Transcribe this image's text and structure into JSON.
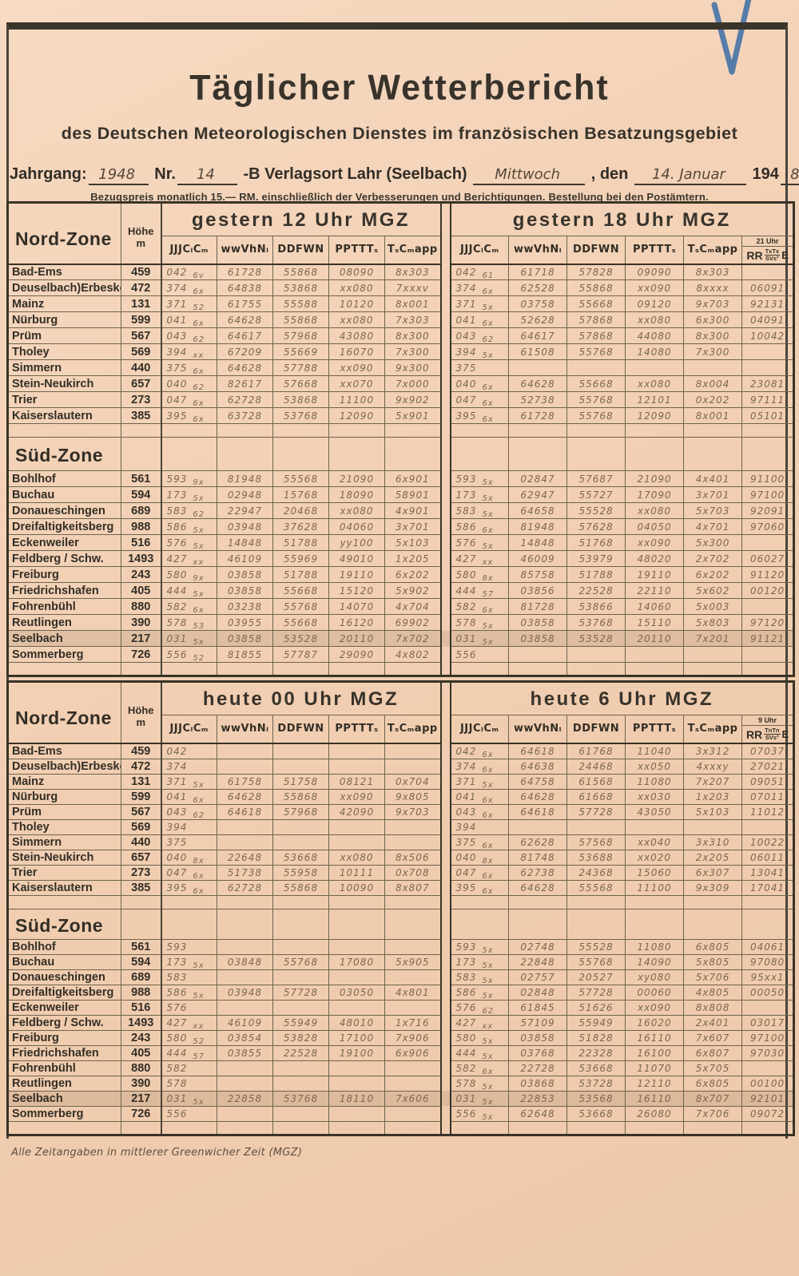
{
  "page": {
    "title": "Täglicher Wetterbericht",
    "subtitle": "des Deutschen Meteorologischen Dienstes im französischen Besatzungsgebiet",
    "issue": {
      "jahrgang_label": "Jahrgang:",
      "jahrgang_value": "1948",
      "nr_label": "Nr.",
      "nr_value": "14",
      "publisher": "-B Verlagsort Lahr (Seelbach)",
      "weekday": "Mittwoch",
      "den_label": ", den",
      "date_value": "14. Januar",
      "year_print": "194",
      "year_hand": "8"
    },
    "note": "Bezugspreis monatlich 15.— RM. einschließlich der Verbesserungen und Berichtigungen. Bestellung bei den Postämtern.",
    "footnote": "Alle Zeitangaben in mittlerer Greenwicher Zeit (MGZ)",
    "pen_mark": "blue-checkmark",
    "pen_mark_color": "#3a6ca6",
    "paper_color": "#f1ceb2",
    "ink_color": "#332e26",
    "hand_ink_color": "#7c6850"
  },
  "columns": {
    "zone_nord": "Nord-Zone",
    "zone_sued": "Süd-Zone",
    "hoehe": "Höhe",
    "hoehe_unit": "m",
    "data_heads": [
      "JJJCₗCₘ",
      "wwVhNₗ",
      "DDFWN",
      "PPTTTₛ",
      "TₛCₘapp"
    ],
    "rr_label": "RR",
    "rr_bottom": "SVs°",
    "rr_e": "E"
  },
  "sections": [
    {
      "left_title": "gestern 12 Uhr MGZ",
      "right_title": "gestern 18 Uhr MGZ",
      "rr_time": "21 Uhr",
      "rr_top": "TxTx",
      "nord": [
        {
          "name": "Bad-Ems",
          "h": "459",
          "l": [
            "042 6v",
            "61728",
            "55868",
            "08090",
            "8x303"
          ],
          "r": [
            "042 61",
            "61718",
            "57828",
            "09090",
            "8x303",
            ""
          ]
        },
        {
          "name": "Deuselbach)Erbeskopf",
          "h": "472",
          "l": [
            "374 6x",
            "64838",
            "53868",
            "xx080",
            "7xxxv"
          ],
          "r": [
            "374 6x",
            "62528",
            "55868",
            "xx090",
            "8xxxx",
            "06091"
          ]
        },
        {
          "name": "Mainz",
          "h": "131",
          "l": [
            "371 52",
            "61755",
            "55588",
            "10120",
            "8x001"
          ],
          "r": [
            "371 5x",
            "03758",
            "55668",
            "09120",
            "9x703",
            "92131"
          ]
        },
        {
          "name": "Nürburg",
          "h": "599",
          "l": [
            "041 6x",
            "64628",
            "55868",
            "xx080",
            "7x303"
          ],
          "r": [
            "041 6x",
            "52628",
            "57868",
            "xx080",
            "6x300",
            "04091"
          ]
        },
        {
          "name": "Prüm",
          "h": "567",
          "l": [
            "043 62",
            "64617",
            "57968",
            "43080",
            "8x300"
          ],
          "r": [
            "043 62",
            "64617",
            "57868",
            "44080",
            "8x300",
            "10042"
          ]
        },
        {
          "name": "Tholey",
          "h": "569",
          "l": [
            "394 xx",
            "67209",
            "55669",
            "16070",
            "7x300"
          ],
          "r": [
            "394 5x",
            "61508",
            "55768",
            "14080",
            "7x300",
            ""
          ]
        },
        {
          "name": "Simmern",
          "h": "440",
          "l": [
            "375 6x",
            "64628",
            "57788",
            "xx090",
            "9x300"
          ],
          "r": [
            "375",
            "",
            "",
            "",
            "",
            ""
          ]
        },
        {
          "name": "Stein-Neukirch",
          "h": "657",
          "l": [
            "040 62",
            "82617",
            "57668",
            "xx070",
            "7x000"
          ],
          "r": [
            "040 6x",
            "64628",
            "55668",
            "xx080",
            "8x004",
            "23081"
          ]
        },
        {
          "name": "Trier",
          "h": "273",
          "l": [
            "047 6x",
            "62728",
            "53868",
            "11100",
            "9x902"
          ],
          "r": [
            "047 6x",
            "52738",
            "55768",
            "12101",
            "0x202",
            "97111"
          ]
        },
        {
          "name": "Kaiserslautern",
          "h": "385",
          "l": [
            "395 6x",
            "63728",
            "53768",
            "12090",
            "5x901"
          ],
          "r": [
            "395 6x",
            "61728",
            "55768",
            "12090",
            "8x001",
            "05101"
          ]
        }
      ],
      "sued": [
        {
          "name": "Bohlhof",
          "h": "561",
          "l": [
            "593 9x",
            "81948",
            "55568",
            "21090",
            "6x901"
          ],
          "r": [
            "593 5x",
            "02847",
            "57687",
            "21090",
            "4x401",
            "91100"
          ]
        },
        {
          "name": "Buchau",
          "h": "594",
          "l": [
            "173 5x",
            "02948",
            "15768",
            "18090",
            "58901"
          ],
          "r": [
            "173 5x",
            "62947",
            "55727",
            "17090",
            "3x701",
            "97100"
          ]
        },
        {
          "name": "Donaueschingen",
          "h": "689",
          "l": [
            "583 62",
            "22947",
            "20468",
            "xx080",
            "4x901"
          ],
          "r": [
            "583 5x",
            "64658",
            "55528",
            "xx080",
            "5x703",
            "92091"
          ]
        },
        {
          "name": "Dreifaltigkeitsberg",
          "h": "988",
          "l": [
            "586 5x",
            "03948",
            "37628",
            "04060",
            "3x701"
          ],
          "r": [
            "586 6x",
            "81948",
            "57628",
            "04050",
            "4x701",
            "97060"
          ]
        },
        {
          "name": "Eckenweiler",
          "h": "516",
          "l": [
            "576 5x",
            "14848",
            "51788",
            "yy100",
            "5x103"
          ],
          "r": [
            "576 5x",
            "14848",
            "51768",
            "xx090",
            "5x300",
            ""
          ]
        },
        {
          "name": "Feldberg / Schw.",
          "h": "1493",
          "l": [
            "427 xx",
            "46109",
            "55969",
            "49010",
            "1x205"
          ],
          "r": [
            "427 xx",
            "46009",
            "53979",
            "48020",
            "2x702",
            "06027"
          ]
        },
        {
          "name": "Freiburg",
          "h": "243",
          "l": [
            "580 9x",
            "03858",
            "51788",
            "19110",
            "6x202"
          ],
          "r": [
            "580 8x",
            "85758",
            "51788",
            "19110",
            "6x202",
            "91120"
          ]
        },
        {
          "name": "Friedrichshafen",
          "h": "405",
          "l": [
            "444 5x",
            "03858",
            "55668",
            "15120",
            "5x902"
          ],
          "r": [
            "444 57",
            "03856",
            "22528",
            "22110",
            "5x602",
            "00120"
          ]
        },
        {
          "name": "Fohrenbühl",
          "h": "880",
          "l": [
            "582 6x",
            "03238",
            "55768",
            "14070",
            "4x704"
          ],
          "r": [
            "582 6x",
            "81728",
            "53866",
            "14060",
            "5x003",
            ""
          ]
        },
        {
          "name": "Reutlingen",
          "h": "390",
          "l": [
            "578 53",
            "03955",
            "55668",
            "16120",
            "69902"
          ],
          "r": [
            "578 5x",
            "03858",
            "53768",
            "15110",
            "5x803",
            "97120"
          ]
        },
        {
          "name": "Seelbach",
          "h": "217",
          "l": [
            "031 5x",
            "03858",
            "53528",
            "20110",
            "7x702"
          ],
          "r": [
            "031 5x",
            "03858",
            "53528",
            "20110",
            "7x201",
            "91121"
          ]
        },
        {
          "name": "Sommerberg",
          "h": "726",
          "l": [
            "556 52",
            "81855",
            "57787",
            "29090",
            "4x802"
          ],
          "r": [
            "556",
            "",
            "",
            "",
            "",
            ""
          ]
        }
      ]
    },
    {
      "left_title": "heute 00 Uhr MGZ",
      "right_title": "heute 6 Uhr MGZ",
      "rr_time": "9 Uhr",
      "rr_top": "TnTn",
      "nord": [
        {
          "name": "Bad-Ems",
          "h": "459",
          "l": [
            "042",
            "",
            "",
            "",
            ""
          ],
          "r": [
            "042 6x",
            "64618",
            "61768",
            "11040",
            "3x312",
            "07037"
          ]
        },
        {
          "name": "Deuselbach)Erbeskopf",
          "h": "472",
          "l": [
            "374",
            "",
            "",
            "",
            ""
          ],
          "r": [
            "374 6x",
            "64638",
            "24468",
            "xx050",
            "4xxxy",
            "27021"
          ]
        },
        {
          "name": "Mainz",
          "h": "131",
          "l": [
            "371 5x",
            "61758",
            "51758",
            "08121",
            "0x704"
          ],
          "r": [
            "371 5x",
            "64758",
            "61568",
            "11080",
            "7x207",
            "09051"
          ]
        },
        {
          "name": "Nürburg",
          "h": "599",
          "l": [
            "041 6x",
            "64628",
            "55868",
            "xx090",
            "9x805"
          ],
          "r": [
            "041 6x",
            "64628",
            "61668",
            "xx030",
            "1x203",
            "07011"
          ]
        },
        {
          "name": "Prüm",
          "h": "567",
          "l": [
            "043 62",
            "64618",
            "57968",
            "42090",
            "9x703"
          ],
          "r": [
            "043 6x",
            "64618",
            "57728",
            "43050",
            "5x103",
            "11012"
          ]
        },
        {
          "name": "Tholey",
          "h": "569",
          "l": [
            "394",
            "",
            "",
            "",
            ""
          ],
          "r": [
            "394",
            "",
            "",
            "",
            "",
            ""
          ]
        },
        {
          "name": "Simmern",
          "h": "440",
          "l": [
            "375",
            "",
            "",
            "",
            ""
          ],
          "r": [
            "375 6x",
            "62628",
            "57568",
            "xx040",
            "3x310",
            "10022"
          ]
        },
        {
          "name": "Stein-Neukirch",
          "h": "657",
          "l": [
            "040 8x",
            "22648",
            "53668",
            "xx080",
            "8x506"
          ],
          "r": [
            "040 8x",
            "81748",
            "53688",
            "xx020",
            "2x205",
            "06011"
          ]
        },
        {
          "name": "Trier",
          "h": "273",
          "l": [
            "047 6x",
            "51738",
            "55958",
            "10111",
            "0x708"
          ],
          "r": [
            "047 6x",
            "62738",
            "24368",
            "15060",
            "6x307",
            "13041"
          ]
        },
        {
          "name": "Kaiserslautern",
          "h": "385",
          "l": [
            "395 6x",
            "62728",
            "55868",
            "10090",
            "8x807"
          ],
          "r": [
            "395 6x",
            "64628",
            "55568",
            "11100",
            "9x309",
            "17041"
          ]
        }
      ],
      "sued": [
        {
          "name": "Bohlhof",
          "h": "561",
          "l": [
            "593",
            "",
            "",
            "",
            ""
          ],
          "r": [
            "593 5x",
            "02748",
            "55528",
            "11080",
            "6x805",
            "04061"
          ]
        },
        {
          "name": "Buchau",
          "h": "594",
          "l": [
            "173 5x",
            "03848",
            "55768",
            "17080",
            "5x905"
          ],
          "r": [
            "173 5x",
            "22848",
            "55768",
            "14090",
            "5x805",
            "97080"
          ]
        },
        {
          "name": "Donaueschingen",
          "h": "689",
          "l": [
            "583",
            "",
            "",
            "",
            ""
          ],
          "r": [
            "583 5x",
            "02757",
            "20527",
            "xy080",
            "5x706",
            "95xx1"
          ]
        },
        {
          "name": "Dreifaltigkeitsberg",
          "h": "988",
          "l": [
            "586 5x",
            "03948",
            "57728",
            "03050",
            "4x801"
          ],
          "r": [
            "586 5x",
            "02848",
            "57728",
            "00060",
            "4x805",
            "00050"
          ]
        },
        {
          "name": "Eckenweiler",
          "h": "516",
          "l": [
            "576",
            "",
            "",
            "",
            ""
          ],
          "r": [
            "576 62",
            "61845",
            "51626",
            "xx090",
            "8x808",
            ""
          ]
        },
        {
          "name": "Feldberg / Schw.",
          "h": "1493",
          "l": [
            "427 xx",
            "46109",
            "55949",
            "48010",
            "1x716"
          ],
          "r": [
            "427 xx",
            "57109",
            "55949",
            "16020",
            "2x401",
            "03017"
          ]
        },
        {
          "name": "Freiburg",
          "h": "243",
          "l": [
            "580 52",
            "03854",
            "53828",
            "17100",
            "7x906"
          ],
          "r": [
            "580 5x",
            "03858",
            "51828",
            "16110",
            "7x607",
            "97100"
          ]
        },
        {
          "name": "Friedrichshafen",
          "h": "405",
          "l": [
            "444 57",
            "03855",
            "22528",
            "19100",
            "6x906"
          ],
          "r": [
            "444 5x",
            "03768",
            "22328",
            "16100",
            "6x807",
            "97030"
          ]
        },
        {
          "name": "Fohrenbühl",
          "h": "880",
          "l": [
            "582",
            "",
            "",
            "",
            ""
          ],
          "r": [
            "582 6x",
            "22728",
            "53668",
            "11070",
            "5x705",
            ""
          ]
        },
        {
          "name": "Reutlingen",
          "h": "390",
          "l": [
            "578",
            "",
            "",
            "",
            ""
          ],
          "r": [
            "578 5x",
            "03868",
            "53728",
            "12110",
            "6x805",
            "00100"
          ]
        },
        {
          "name": "Seelbach",
          "h": "217",
          "l": [
            "031 5x",
            "22858",
            "53768",
            "18110",
            "7x606"
          ],
          "r": [
            "031 5x",
            "22853",
            "53568",
            "16110",
            "8x707",
            "92101"
          ]
        },
        {
          "name": "Sommerberg",
          "h": "726",
          "l": [
            "556",
            "",
            "",
            "",
            ""
          ],
          "r": [
            "556 5x",
            "62648",
            "53668",
            "26080",
            "7x706",
            "09072"
          ]
        }
      ]
    }
  ]
}
